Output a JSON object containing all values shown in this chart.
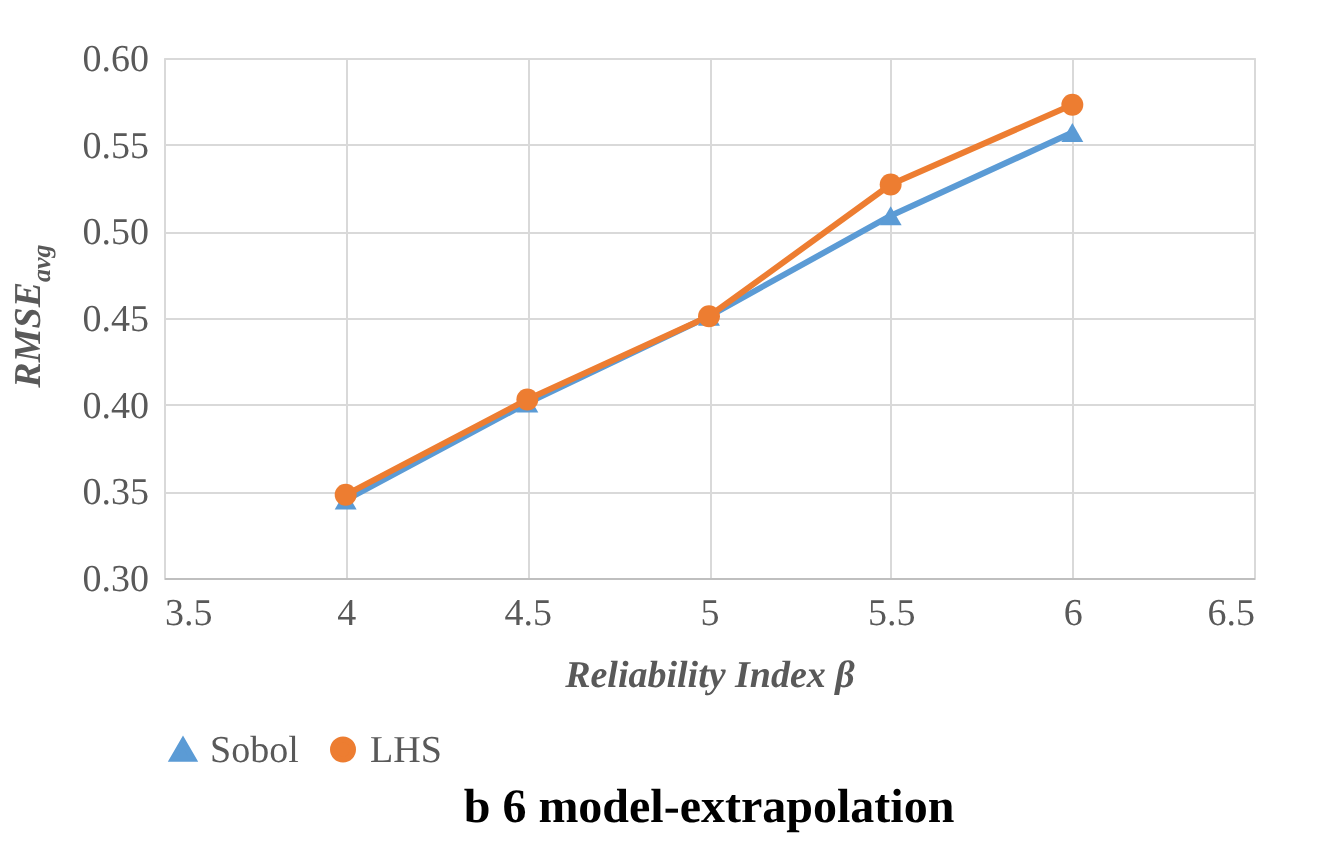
{
  "chart_data": {
    "type": "line",
    "xlabel": "Reliability Index β",
    "ylabel": "RMSE$_{avg}$",
    "annotations": [
      "b 6 model-extrapolation"
    ],
    "x": [
      4,
      4.5,
      5,
      5.5,
      6
    ],
    "series": [
      {
        "name": "Sobol",
        "color": "#5b9bd5",
        "marker": "triangle",
        "values": [
          0.345,
          0.401,
          0.451,
          0.509,
          0.557
        ]
      },
      {
        "name": "LHS",
        "color": "#ed7d31",
        "marker": "circle",
        "values": [
          0.348,
          0.403,
          0.451,
          0.527,
          0.573
        ]
      }
    ],
    "xlim": [
      3.5,
      6.5
    ],
    "xticks": [
      3.5,
      4,
      4.5,
      5,
      5.5,
      6,
      6.5
    ],
    "ylim": [
      0.3,
      0.6
    ],
    "yticks": [
      {
        "value": 0.3,
        "label": "0.30"
      },
      0.35,
      {
        "value": 0.4,
        "label": "0.40"
      },
      0.45,
      {
        "value": 0.5,
        "label": "0.50"
      },
      0.55,
      {
        "value": 0.6,
        "label": "0.60"
      }
    ],
    "grid": true,
    "legend": "bottom",
    "line_style": "solid"
  }
}
